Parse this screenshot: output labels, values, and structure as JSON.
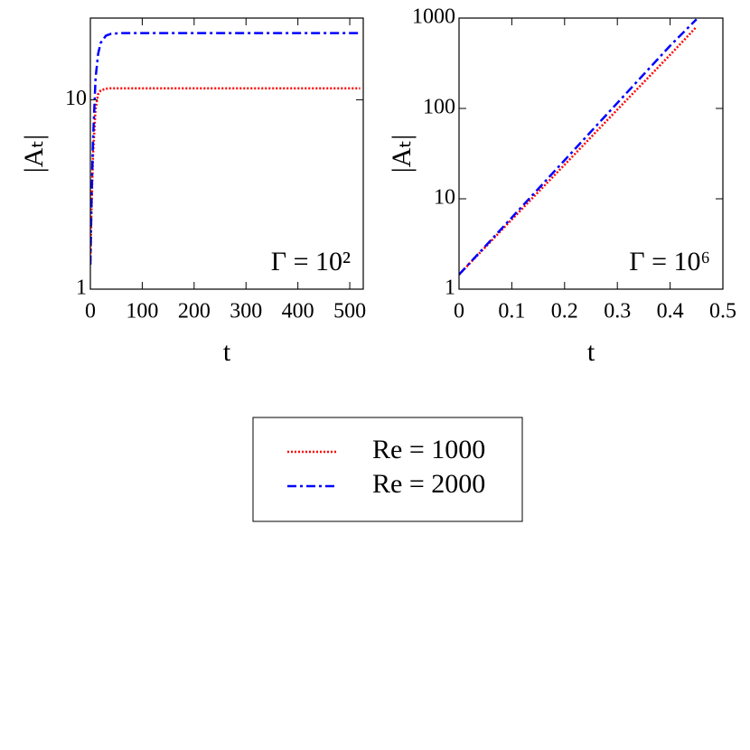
{
  "chart_data": [
    {
      "type": "line",
      "ylabel": "|Aₜ|",
      "xlabel": "t",
      "annotation": "Γ = 10²",
      "x": [
        0,
        2,
        5,
        10,
        15,
        20,
        30,
        40,
        60,
        100,
        200,
        300,
        400,
        500,
        520
      ],
      "series": [
        {
          "name": "Re = 1000",
          "color": "#ff0000",
          "style": "dotted",
          "values": [
            1.35,
            2.5,
            5,
            9,
            10.7,
            11.2,
            11.45,
            11.5,
            11.5,
            11.5,
            11.5,
            11.5,
            11.5,
            11.5,
            11.5
          ]
        },
        {
          "name": "Re = 2000",
          "color": "#0000ff",
          "style": "dashdot",
          "values": [
            1.35,
            2.7,
            6,
            13,
            17.5,
            20,
            21.8,
            22.3,
            22.5,
            22.5,
            22.5,
            22.5,
            22.5,
            22.5,
            22.5
          ]
        }
      ],
      "xlim": [
        0,
        526
      ],
      "xticks": [
        0,
        100,
        200,
        300,
        400,
        500
      ],
      "ylim": [
        1,
        27
      ],
      "yticks": [
        1,
        10
      ],
      "ylog": true
    },
    {
      "type": "line",
      "ylabel": "|Aₜ|",
      "xlabel": "t",
      "annotation": "Γ = 10⁶",
      "x": [
        0,
        0.1,
        0.2,
        0.3,
        0.4,
        0.45
      ],
      "series": [
        {
          "name": "Re = 1000",
          "color": "#ff0000",
          "style": "dotted",
          "values": [
            1.45,
            5.9,
            23.8,
            97,
            392,
            800
          ]
        },
        {
          "name": "Re = 2000",
          "color": "#0000ff",
          "style": "dashdot",
          "values": [
            1.45,
            6.2,
            26.7,
            115,
            494,
            970
          ]
        }
      ],
      "xlim": [
        0,
        0.5
      ],
      "xticks": [
        0,
        0.1,
        0.2,
        0.3,
        0.4,
        0.5
      ],
      "ylim": [
        1,
        1000
      ],
      "yticks": [
        1,
        10,
        100,
        1000
      ],
      "ylog": true
    }
  ]
}
